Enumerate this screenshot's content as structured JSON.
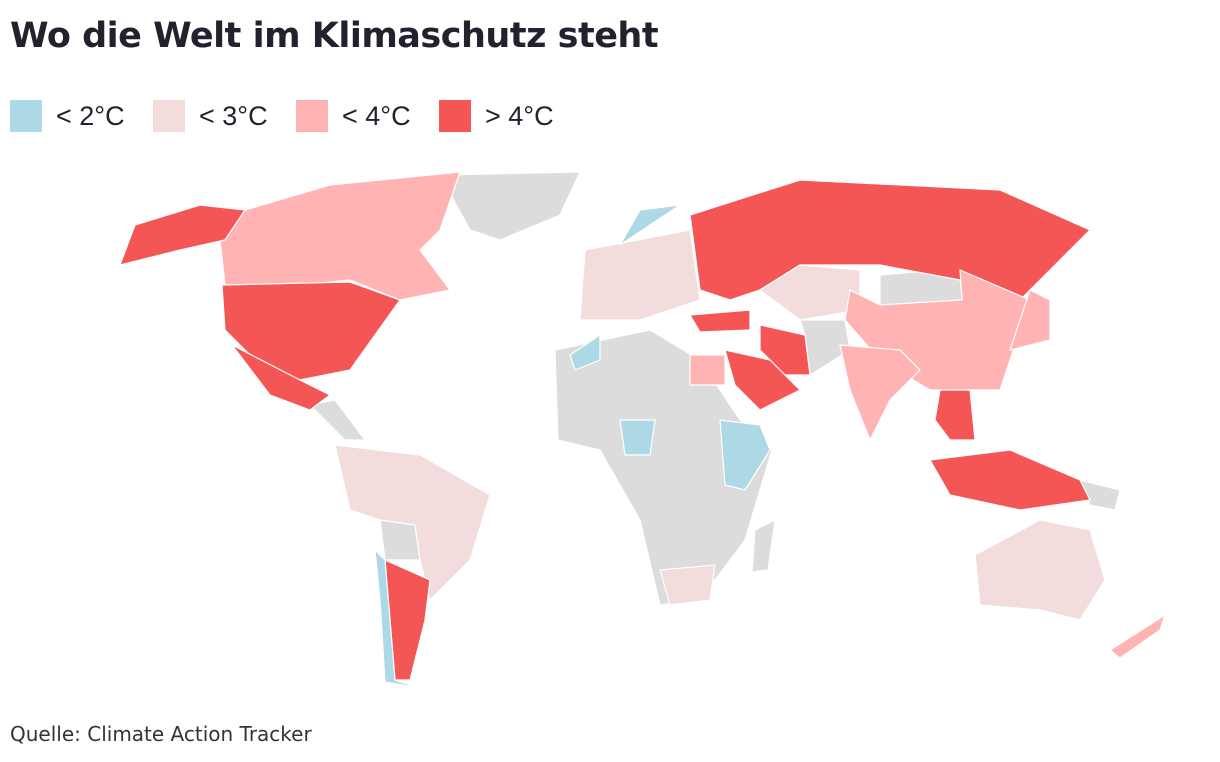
{
  "title": "Wo die Welt im Klimaschutz steht",
  "legend": [
    {
      "label": "< 2°C",
      "color": "#add8e6"
    },
    {
      "label": "< 3°C",
      "color": "#f2dcdc"
    },
    {
      "label": "< 4°C",
      "color": "#ffb3b3"
    },
    {
      "label": "> 4°C",
      "color": "#f45555"
    }
  ],
  "source": "Quelle: Climate Action Tracker"
}
